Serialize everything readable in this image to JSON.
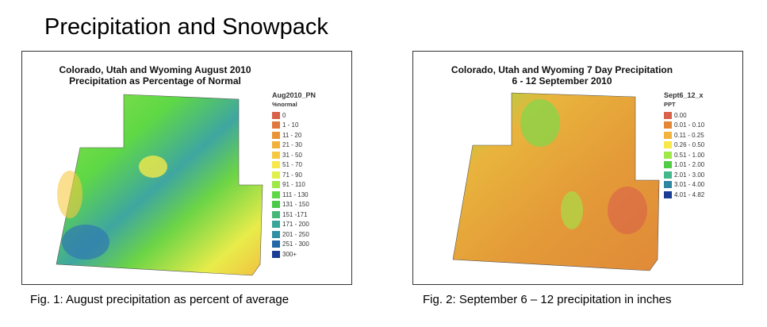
{
  "page_title": "Precipitation and Snowpack",
  "figures": [
    {
      "map_title_1": "Colorado, Utah and Wyoming August 2010",
      "map_title_2": "Precipitation as Percentage of Normal",
      "legend_title": "Aug2010_PN",
      "legend_subtitle": "%normal",
      "legend": [
        {
          "label": "0",
          "color": "#d9614a"
        },
        {
          "label": "1 - 10",
          "color": "#e0773e"
        },
        {
          "label": "11 - 20",
          "color": "#ea9436"
        },
        {
          "label": "21 - 30",
          "color": "#f2b13b"
        },
        {
          "label": "31 - 50",
          "color": "#f5c942"
        },
        {
          "label": "51 - 70",
          "color": "#f8e84a"
        },
        {
          "label": "71 - 90",
          "color": "#e0f04a"
        },
        {
          "label": "91 - 110",
          "color": "#9ee84a"
        },
        {
          "label": "111 - 130",
          "color": "#5fd846"
        },
        {
          "label": "131 - 150",
          "color": "#4cc948"
        },
        {
          "label": "151 -171",
          "color": "#44b877"
        },
        {
          "label": "171 - 200",
          "color": "#3aa69a"
        },
        {
          "label": "201 - 250",
          "color": "#2f8fa3"
        },
        {
          "label": "251 - 300",
          "color": "#2268a6"
        },
        {
          "label": "300+",
          "color": "#1a3c94"
        }
      ],
      "caption": "Fig. 1: August precipitation as percent of average"
    },
    {
      "map_title_1": "Colorado, Utah and Wyoming 7 Day Precipitation",
      "map_title_2": "6 - 12 September 2010",
      "legend_title": "Sept6_12_x",
      "legend_subtitle": "PPT",
      "legend": [
        {
          "label": "0.00",
          "color": "#d9614a"
        },
        {
          "label": "0.01 - 0.10",
          "color": "#e48838"
        },
        {
          "label": "0.11 - 0.25",
          "color": "#f2b43e"
        },
        {
          "label": "0.26 - 0.50",
          "color": "#f8e84a"
        },
        {
          "label": "0.51 - 1.00",
          "color": "#9ee84a"
        },
        {
          "label": "1.01 - 2.00",
          "color": "#52cc46"
        },
        {
          "label": "2.01 - 3.00",
          "color": "#44b88a"
        },
        {
          "label": "3.01 - 4.00",
          "color": "#2f86a3"
        },
        {
          "label": "4.01 - 4.82",
          "color": "#1a3c94"
        }
      ],
      "caption": "Fig. 2: September 6 – 12 precipitation in inches"
    }
  ]
}
